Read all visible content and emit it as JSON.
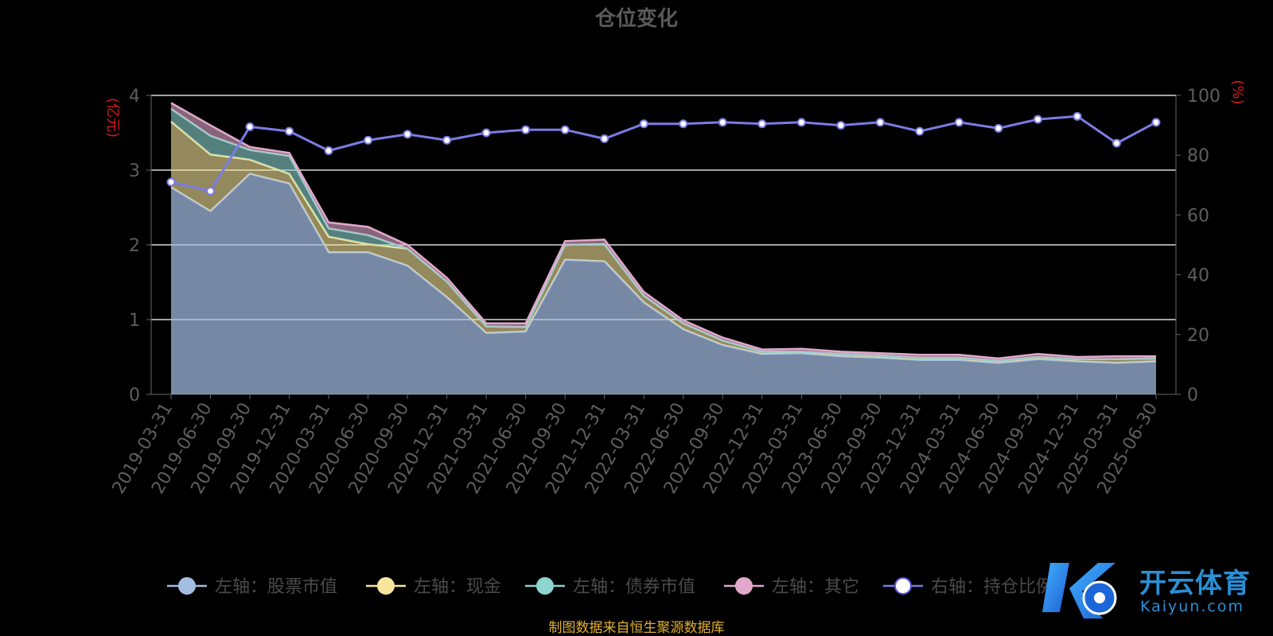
{
  "chart_data": {
    "type": "area",
    "title": "仓位变化",
    "left_axis_label": "(亿元)",
    "right_axis_label": "(%)",
    "left_ylim": [
      0,
      4
    ],
    "left_ticks": [
      "0",
      "1",
      "2",
      "3",
      "4"
    ],
    "right_ylim": [
      0,
      100
    ],
    "right_ticks": [
      "0",
      "20",
      "40",
      "60",
      "80",
      "100"
    ],
    "grid": true,
    "legend_position": "bottom",
    "x": [
      "2019-03-31",
      "2019-06-30",
      "2019-09-30",
      "2019-12-31",
      "2020-03-31",
      "2020-06-30",
      "2020-09-30",
      "2020-12-31",
      "2021-03-31",
      "2021-06-30",
      "2021-09-30",
      "2021-12-31",
      "2022-03-31",
      "2022-06-30",
      "2022-09-30",
      "2022-12-31",
      "2023-03-31",
      "2023-06-30",
      "2023-09-30",
      "2023-12-31",
      "2024-03-31",
      "2024-06-30",
      "2024-09-30",
      "2024-12-31",
      "2025-03-31",
      "2025-06-30"
    ],
    "series": [
      {
        "name": "左轴：股票市值",
        "axis": "left",
        "color": "#a4bde3",
        "values": [
          2.77,
          2.45,
          2.95,
          2.82,
          1.9,
          1.9,
          1.72,
          1.3,
          0.82,
          0.84,
          1.8,
          1.78,
          1.23,
          0.87,
          0.66,
          0.54,
          0.55,
          0.51,
          0.49,
          0.46,
          0.46,
          0.42,
          0.47,
          0.44,
          0.42,
          0.44
        ]
      },
      {
        "name": "左轴：现金",
        "axis": "left",
        "color": "#f7e59b",
        "values": [
          0.88,
          0.76,
          0.19,
          0.13,
          0.21,
          0.11,
          0.23,
          0.21,
          0.09,
          0.06,
          0.2,
          0.23,
          0.09,
          0.08,
          0.06,
          0.03,
          0.02,
          0.03,
          0.03,
          0.03,
          0.03,
          0.03,
          0.03,
          0.03,
          0.05,
          0.04
        ]
      },
      {
        "name": "左轴：债券市值",
        "axis": "left",
        "color": "#8ed4cf",
        "values": [
          0.17,
          0.25,
          0.13,
          0.24,
          0.11,
          0.12,
          0.0,
          0.0,
          0.0,
          0.0,
          0.0,
          0.0,
          0.0,
          0.0,
          0.0,
          0.0,
          0.0,
          0.0,
          0.0,
          0.0,
          0.0,
          0.0,
          0.0,
          0.0,
          0.0,
          0.0
        ]
      },
      {
        "name": "左轴：其它",
        "axis": "left",
        "color": "#e2a9cc",
        "values": [
          0.08,
          0.14,
          0.04,
          0.04,
          0.08,
          0.11,
          0.05,
          0.05,
          0.04,
          0.05,
          0.05,
          0.06,
          0.05,
          0.04,
          0.04,
          0.03,
          0.04,
          0.03,
          0.03,
          0.04,
          0.04,
          0.03,
          0.04,
          0.03,
          0.04,
          0.03
        ]
      },
      {
        "name": "右轴：持仓比例",
        "axis": "right",
        "color": "#7b7be6",
        "type": "line",
        "values": [
          71,
          68,
          89.5,
          88,
          81.5,
          85,
          87,
          85,
          87.5,
          88.5,
          88.5,
          85.5,
          90.5,
          90.5,
          91,
          90.5,
          91,
          90,
          91,
          88,
          91,
          89,
          92,
          93,
          84,
          91
        ]
      }
    ]
  },
  "footer": {
    "source_text": "制图数据来自恒生聚源数据库"
  },
  "watermark": {
    "cn": "开云体育",
    "en": "Kaiyun.com"
  }
}
